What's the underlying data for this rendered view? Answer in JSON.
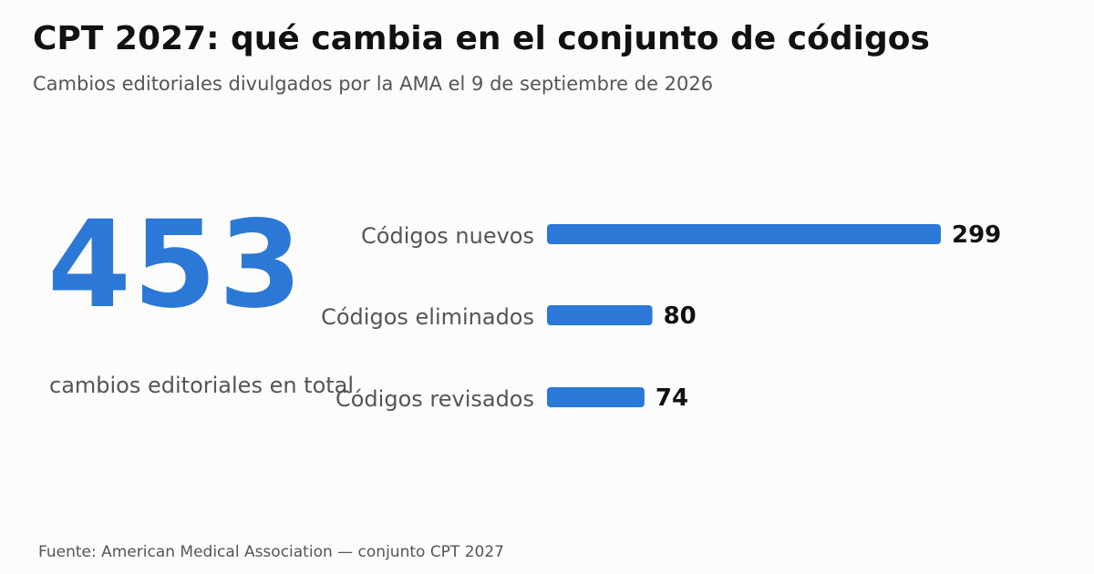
{
  "title": "CPT 2027: qué cambia en el conjunto de códigos",
  "subtitle": "Cambios editoriales divulgados por la AMA el 9 de septiembre de 2026",
  "headline": {
    "value": "453",
    "caption": "cambios editoriales en total"
  },
  "source": "Fuente: American Medical Association — conjunto CPT 2027",
  "colors": {
    "accent": "#2b78d6",
    "label": "#555555",
    "value": "#111111",
    "background": "#fcfcfa"
  },
  "chart_data": {
    "type": "bar",
    "orientation": "horizontal",
    "categories": [
      "Códigos nuevos",
      "Códigos eliminados",
      "Códigos revisados"
    ],
    "values": [
      299,
      80,
      74
    ],
    "data_labels": [
      "299",
      "80",
      "74"
    ],
    "grid": false,
    "legend": "none"
  }
}
